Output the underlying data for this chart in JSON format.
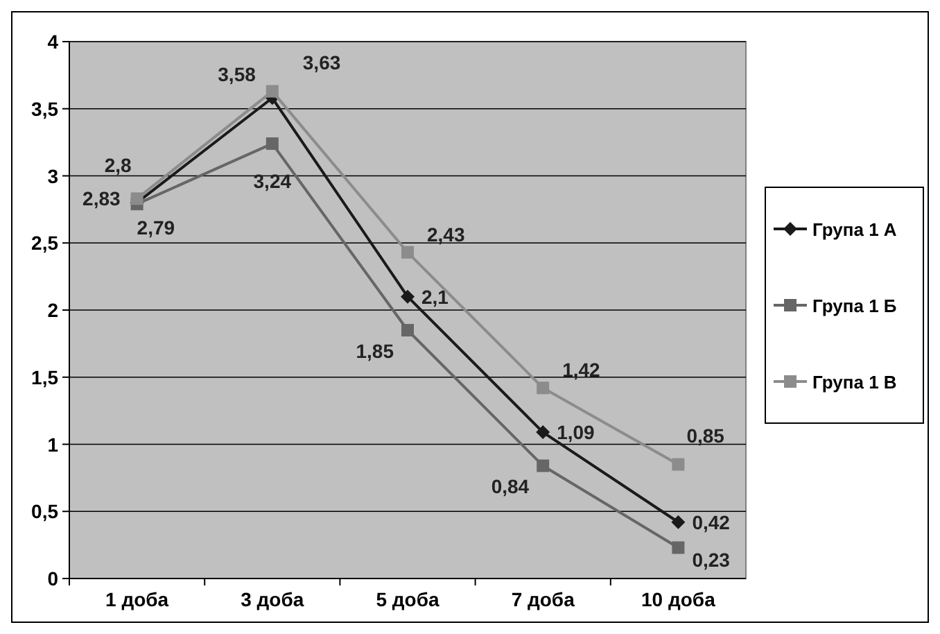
{
  "chart_data": {
    "type": "line",
    "categories": [
      "1 доба",
      "3 доба",
      "5 доба",
      "7 доба",
      "10 доба"
    ],
    "series": [
      {
        "name": "Група 1 А",
        "color": "#1a1a1a",
        "marker": "diamond",
        "values": [
          2.8,
          3.58,
          2.1,
          1.09,
          0.42
        ],
        "value_labels": [
          "2,8",
          "3,58",
          "2,1",
          "1,09",
          "0,42"
        ]
      },
      {
        "name": "Група 1 Б",
        "color": "#666666",
        "marker": "square",
        "values": [
          2.79,
          3.24,
          1.85,
          0.84,
          0.23
        ],
        "value_labels": [
          "2,79",
          "3,24",
          "1,85",
          "0,84",
          "0,23"
        ]
      },
      {
        "name": "Група 1 В",
        "color": "#8c8c8c",
        "marker": "square",
        "values": [
          2.83,
          3.63,
          2.43,
          1.42,
          0.85
        ],
        "value_labels": [
          "2,83",
          "3,63",
          "2,43",
          "1,42",
          "0,85"
        ]
      }
    ],
    "ylim": [
      0,
      4
    ],
    "yticks": [
      0,
      {
        "value": 0.5,
        "label": "0,5"
      },
      1,
      {
        "value": 1.5,
        "label": "1,5"
      },
      2,
      {
        "value": 2.5,
        "label": "2,5"
      },
      3,
      {
        "value": 3.5,
        "label": "3,5"
      },
      4
    ],
    "grid": "y",
    "legend": "right"
  }
}
